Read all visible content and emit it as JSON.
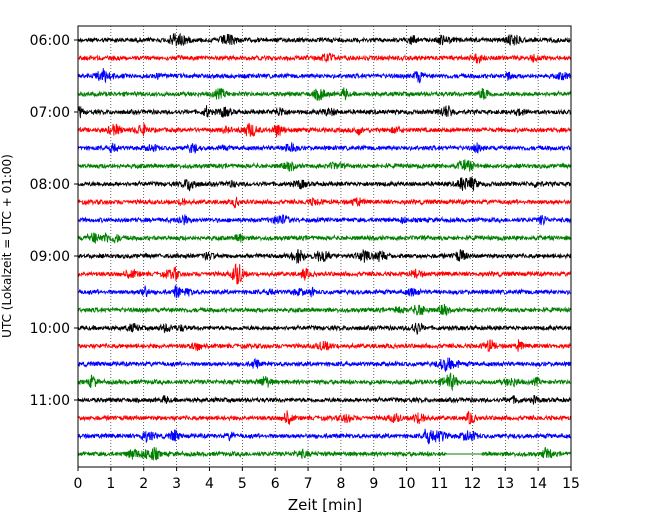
{
  "chart_data": {
    "type": "line",
    "title": "",
    "xlabel": "Zeit  [min]",
    "ylabel": "UTC (Lokalzeit = UTC + 01:00)",
    "xlim": [
      0,
      15
    ],
    "x_ticks": [
      "0",
      "1",
      "2",
      "3",
      "4",
      "5",
      "6",
      "7",
      "8",
      "9",
      "10",
      "11",
      "12",
      "13",
      "14",
      "15"
    ],
    "y_ticks": [
      "06:00",
      "07:00",
      "08:00",
      "09:00",
      "10:00",
      "11:00"
    ],
    "grid": "vertical dotted",
    "row_interval_minutes": 15,
    "row_start": "06:00",
    "row_colors": [
      "#000000",
      "#ff0000",
      "#0000ff",
      "#008000"
    ],
    "rows": 24,
    "data_gap": {
      "row": 23,
      "x_start": 11.2,
      "x_end": 12.3
    }
  }
}
